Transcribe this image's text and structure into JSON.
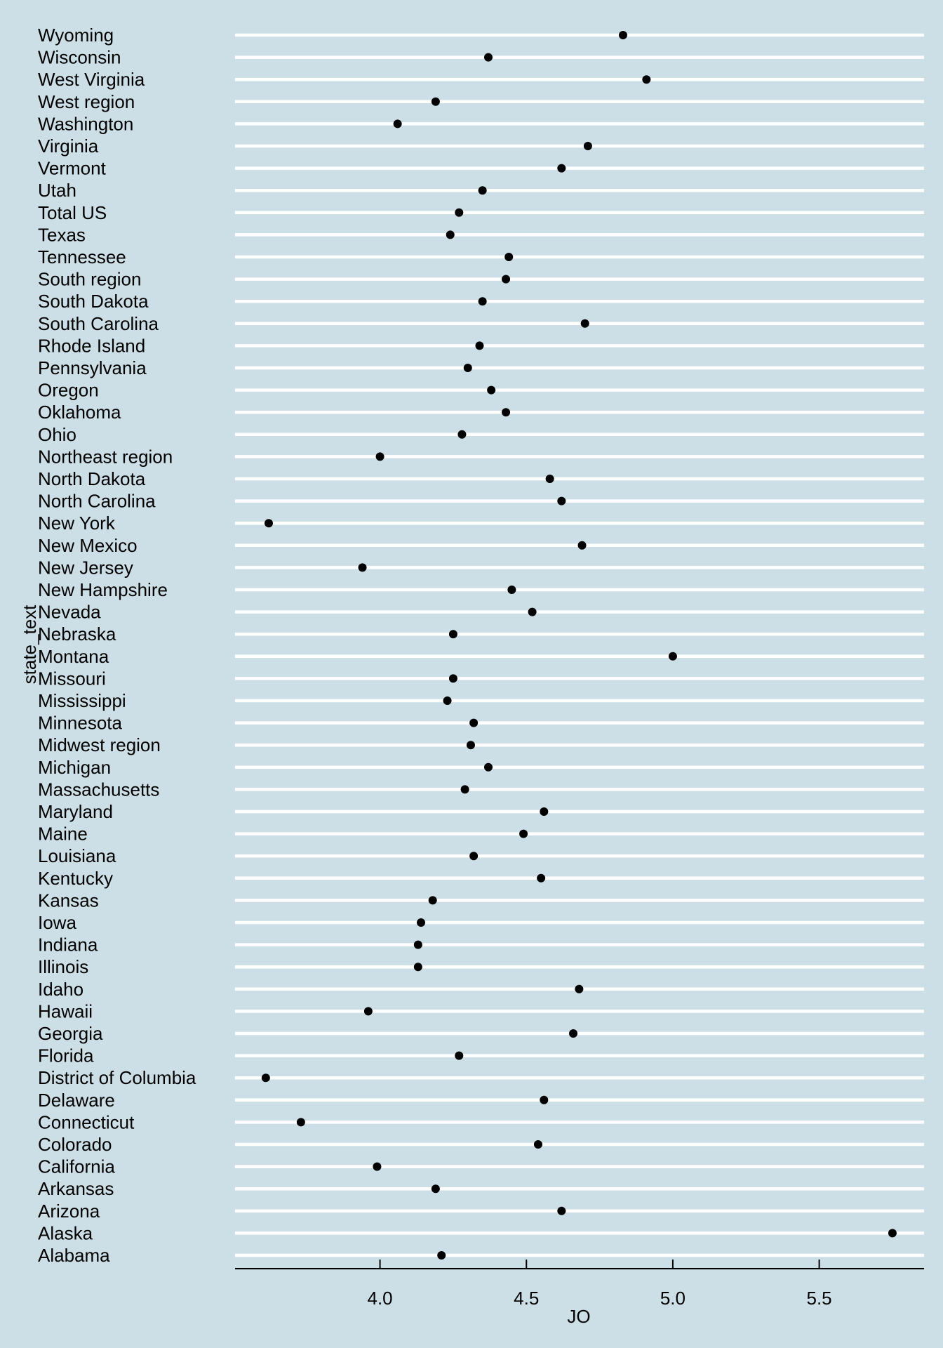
{
  "chart_data": {
    "type": "scatter",
    "title": "",
    "xlabel": "JO",
    "ylabel": "state_text",
    "xlim": [
      3.505,
      5.858
    ],
    "xticks": [
      4.0,
      4.5,
      5.0,
      5.5
    ],
    "xtick_labels": [
      "4.0",
      "4.5",
      "5.0",
      "5.5"
    ],
    "grid": "horizontal white lines per category",
    "colors": {
      "background": "#cddfe6",
      "gridline": "#ffffff",
      "point": "#000000"
    },
    "categories": [
      "Wyoming",
      "Wisconsin",
      "West Virginia",
      "West region",
      "Washington",
      "Virginia",
      "Vermont",
      "Utah",
      "Total US",
      "Texas",
      "Tennessee",
      "South region",
      "South Dakota",
      "South Carolina",
      "Rhode Island",
      "Pennsylvania",
      "Oregon",
      "Oklahoma",
      "Ohio",
      "Northeast region",
      "North Dakota",
      "North Carolina",
      "New York",
      "New Mexico",
      "New Jersey",
      "New Hampshire",
      "Nevada",
      "Nebraska",
      "Montana",
      "Missouri",
      "Mississippi",
      "Minnesota",
      "Midwest region",
      "Michigan",
      "Massachusetts",
      "Maryland",
      "Maine",
      "Louisiana",
      "Kentucky",
      "Kansas",
      "Iowa",
      "Indiana",
      "Illinois",
      "Idaho",
      "Hawaii",
      "Georgia",
      "Florida",
      "District of Columbia",
      "Delaware",
      "Connecticut",
      "Colorado",
      "California",
      "Arkansas",
      "Arizona",
      "Alaska",
      "Alabama"
    ],
    "values": [
      4.83,
      4.37,
      4.91,
      4.19,
      4.06,
      4.71,
      4.62,
      4.35,
      4.27,
      4.24,
      4.44,
      4.43,
      4.35,
      4.7,
      4.34,
      4.3,
      4.38,
      4.43,
      4.28,
      4.0,
      4.58,
      4.62,
      3.62,
      4.69,
      3.94,
      4.45,
      4.52,
      4.25,
      5.0,
      4.25,
      4.23,
      4.32,
      4.31,
      4.37,
      4.29,
      4.56,
      4.49,
      4.32,
      4.55,
      4.18,
      4.14,
      4.13,
      4.13,
      4.68,
      3.96,
      4.66,
      4.27,
      3.61,
      4.56,
      3.73,
      4.54,
      3.99,
      4.19,
      4.62,
      5.75,
      4.21
    ]
  }
}
